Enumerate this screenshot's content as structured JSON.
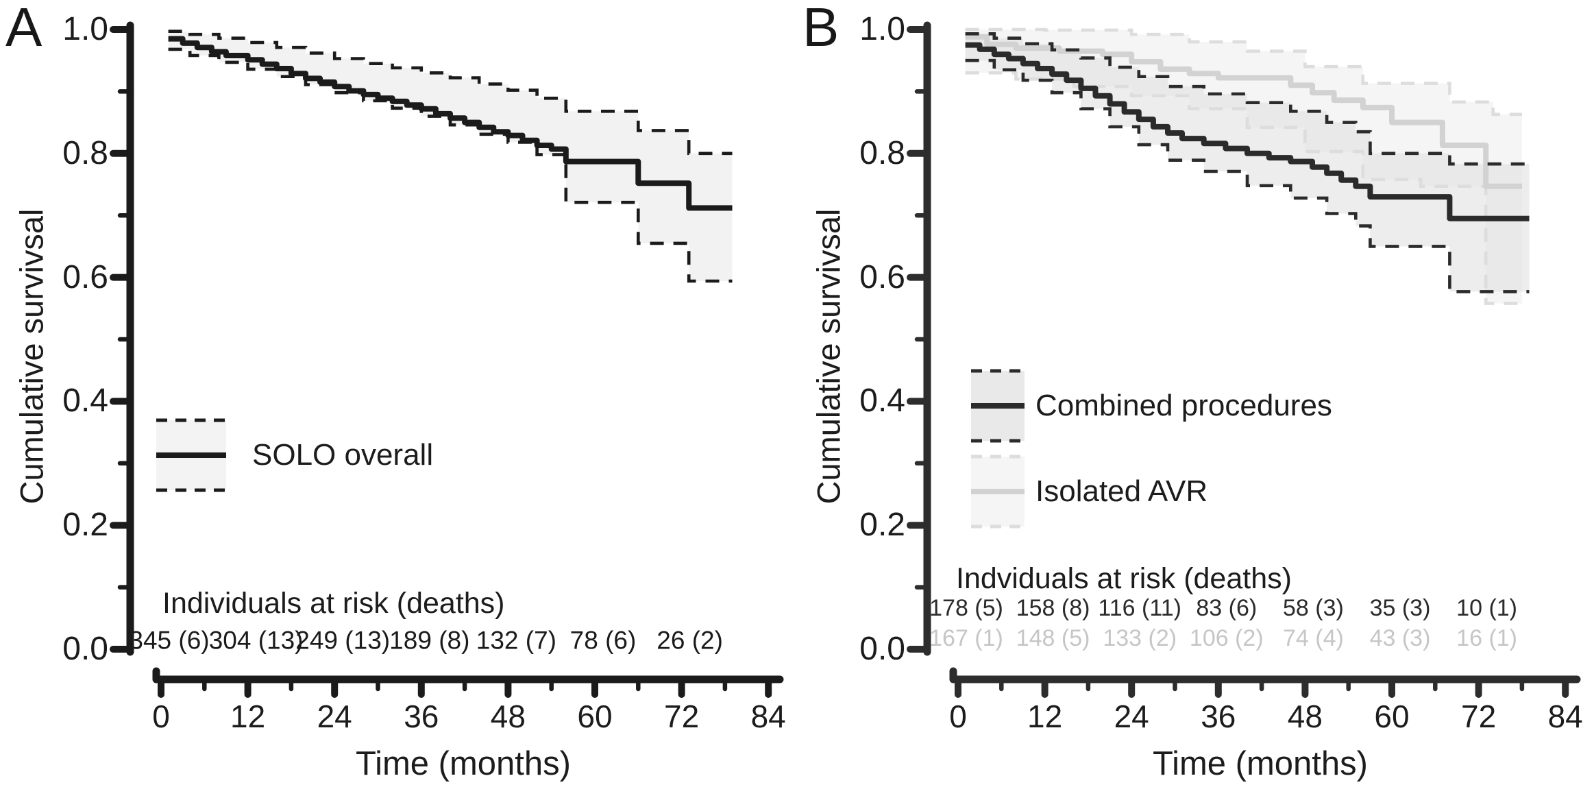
{
  "figure": {
    "background": "#ffffff",
    "text_color": "#1c1c1c"
  },
  "chart_data": [
    {
      "type": "line",
      "subtype": "kaplan-meier-step",
      "panel": "A",
      "title": "",
      "xlabel": "Time (months)",
      "ylabel": "Cumulative survivsal",
      "xlim": [
        0,
        84
      ],
      "ylim": [
        0.0,
        1.0
      ],
      "xticks": [
        0,
        12,
        24,
        36,
        48,
        60,
        72,
        84
      ],
      "xminorticks": [
        6,
        18,
        30,
        42,
        54,
        66,
        78
      ],
      "ytick_values": [
        1.0,
        0.8,
        0.6,
        0.4,
        0.2,
        0.0
      ],
      "ytick_labels": [
        "1.0",
        "0.8",
        "0.6",
        "0.4",
        "0.2",
        "0.0"
      ],
      "yminortick_values": [
        0.9,
        0.7,
        0.5,
        0.3,
        0.1
      ],
      "axis_color": "#1b1b1b",
      "grid": false,
      "legend_position": "lower-left",
      "series": [
        {
          "name": "SOLO overall",
          "color": "#1b1b1b",
          "ci_color": "#1b1b1b",
          "band_color": "#f1f1f1",
          "band_opacity": 0.9,
          "legend_fill": "#f3f3f3",
          "x": [
            1,
            3,
            5,
            7,
            9,
            12,
            14,
            16,
            18,
            20,
            22,
            24,
            26,
            28,
            30,
            32,
            34,
            36,
            38,
            40,
            42,
            44,
            46,
            48,
            50,
            52,
            54,
            56,
            66,
            73,
            79
          ],
          "y": [
            0.985,
            0.978,
            0.971,
            0.964,
            0.958,
            0.951,
            0.944,
            0.937,
            0.929,
            0.921,
            0.915,
            0.908,
            0.901,
            0.895,
            0.889,
            0.884,
            0.878,
            0.872,
            0.864,
            0.857,
            0.85,
            0.842,
            0.835,
            0.829,
            0.821,
            0.813,
            0.807,
            0.787,
            0.752,
            0.712,
            0.712
          ],
          "ci_upper": {
            "x": [
              1,
              4,
              8,
              12,
              16,
              20,
              24,
              28,
              32,
              36,
              40,
              44,
              48,
              52,
              56,
              66,
              73,
              79
            ],
            "y": [
              0.997,
              0.992,
              0.986,
              0.979,
              0.971,
              0.962,
              0.953,
              0.945,
              0.938,
              0.93,
              0.922,
              0.912,
              0.902,
              0.889,
              0.868,
              0.837,
              0.8,
              0.8
            ]
          },
          "ci_lower": {
            "x": [
              1,
              4,
              8,
              12,
              16,
              20,
              24,
              28,
              32,
              36,
              40,
              44,
              48,
              52,
              56,
              66,
              73,
              79
            ],
            "y": [
              0.968,
              0.958,
              0.947,
              0.936,
              0.924,
              0.911,
              0.898,
              0.885,
              0.873,
              0.86,
              0.846,
              0.831,
              0.818,
              0.798,
              0.721,
              0.655,
              0.594,
              0.594
            ]
          }
        }
      ],
      "at_risk": {
        "title": "Individuals at risk (deaths)",
        "times": [
          0,
          12,
          24,
          36,
          48,
          60,
          72
        ],
        "rows": [
          {
            "series": "SOLO overall",
            "color": "#1b1b1b",
            "values": [
              "345 (6)",
              "304 (13)",
              "249 (13)",
              "189 (8)",
              "132 (7)",
              "78 (6)",
              "26 (2)"
            ]
          }
        ]
      }
    },
    {
      "type": "line",
      "subtype": "kaplan-meier-step",
      "panel": "B",
      "title": "",
      "xlabel": "Time (months)",
      "ylabel": "Cumulative survivsal",
      "xlim": [
        0,
        84
      ],
      "ylim": [
        0.0,
        1.0
      ],
      "xticks": [
        0,
        12,
        24,
        36,
        48,
        60,
        72,
        84
      ],
      "xminorticks": [
        6,
        18,
        30,
        42,
        54,
        66,
        78
      ],
      "ytick_values": [
        1.0,
        0.8,
        0.6,
        0.4,
        0.2,
        0.0
      ],
      "ytick_labels": [
        "1.0",
        "0.8",
        "0.6",
        "0.4",
        "0.2",
        "0.0"
      ],
      "yminortick_values": [
        0.9,
        0.7,
        0.5,
        0.3,
        0.1
      ],
      "axis_color": "#2d2d2d",
      "grid": false,
      "legend_position": "center-left",
      "series": [
        {
          "name": "Combined procedures",
          "color": "#2b2b2b",
          "ci_color": "#2b2b2b",
          "band_color": "#dedede",
          "band_opacity": 0.55,
          "legend_fill": "#e9e9e9",
          "x": [
            1,
            3,
            5,
            7,
            9,
            11,
            13,
            15,
            17,
            19,
            21,
            23,
            25,
            27,
            29,
            31,
            34,
            37,
            40,
            43,
            46,
            49,
            51,
            53,
            55,
            57,
            68,
            79
          ],
          "y": [
            0.975,
            0.968,
            0.96,
            0.953,
            0.945,
            0.937,
            0.928,
            0.918,
            0.905,
            0.893,
            0.88,
            0.867,
            0.855,
            0.843,
            0.833,
            0.824,
            0.816,
            0.808,
            0.8,
            0.793,
            0.787,
            0.778,
            0.768,
            0.757,
            0.747,
            0.73,
            0.695,
            0.695
          ],
          "ci_upper": {
            "x": [
              1,
              5,
              9,
              13,
              17,
              21,
              25,
              29,
              34,
              40,
              46,
              51,
              55,
              57,
              68,
              79
            ],
            "y": [
              0.993,
              0.986,
              0.977,
              0.967,
              0.954,
              0.939,
              0.924,
              0.908,
              0.896,
              0.882,
              0.868,
              0.85,
              0.835,
              0.8,
              0.783,
              0.783
            ]
          },
          "ci_lower": {
            "x": [
              1,
              5,
              9,
              13,
              17,
              21,
              25,
              29,
              34,
              40,
              46,
              51,
              55,
              57,
              68,
              79
            ],
            "y": [
              0.95,
              0.935,
              0.918,
              0.898,
              0.872,
              0.843,
              0.814,
              0.789,
              0.771,
              0.748,
              0.728,
              0.703,
              0.683,
              0.65,
              0.577,
              0.577
            ]
          }
        },
        {
          "name": "Isolated AVR",
          "color": "#d2d2d2",
          "ci_color": "#dddddd",
          "band_color": "#efefef",
          "band_opacity": 0.65,
          "legend_fill": "#f5f5f5",
          "x": [
            1,
            4,
            8,
            14,
            20,
            24,
            28,
            32,
            36,
            46,
            49,
            52,
            56,
            60,
            67,
            73,
            78
          ],
          "y": [
            0.988,
            0.976,
            0.97,
            0.965,
            0.96,
            0.948,
            0.936,
            0.929,
            0.922,
            0.91,
            0.898,
            0.886,
            0.874,
            0.85,
            0.813,
            0.747,
            0.747
          ],
          "ci_upper": {
            "x": [
              1,
              12,
              24,
              32,
              40,
              48,
              56,
              68,
              74,
              78
            ],
            "y": [
              1.0,
              0.999,
              0.992,
              0.98,
              0.965,
              0.94,
              0.913,
              0.883,
              0.863,
              0.863
            ]
          },
          "ci_lower": {
            "x": [
              1,
              8,
              16,
              24,
              32,
              40,
              48,
              56,
              64,
              73,
              78
            ],
            "y": [
              0.93,
              0.92,
              0.908,
              0.893,
              0.872,
              0.842,
              0.803,
              0.758,
              0.747,
              0.558,
              0.558
            ]
          }
        }
      ],
      "at_risk": {
        "title": "Indviduals at risk (deaths)",
        "times": [
          0,
          12,
          24,
          36,
          48,
          60,
          72
        ],
        "rows": [
          {
            "series": "Combined procedures",
            "color": "#2b2b2b",
            "values": [
              "178 (5)",
              "158 (8)",
              "116 (11)",
              "83 (6)",
              "58 (3)",
              "35 (3)",
              "10 (1)"
            ]
          },
          {
            "series": "Isolated AVR",
            "color": "#c6c6c6",
            "values": [
              "167 (1)",
              "148 (5)",
              "133 (2)",
              "106 (2)",
              "74 (4)",
              "43 (3)",
              "16 (1)"
            ]
          }
        ]
      }
    }
  ]
}
